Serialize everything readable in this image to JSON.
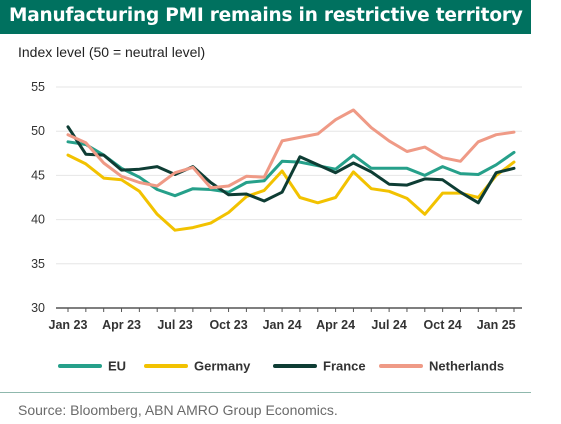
{
  "title": "Manufacturing PMI remains in restrictive territory",
  "subtitle": "Index level (50 = neutral level)",
  "source": "Source: Bloomberg, ABN AMRO Group Economics.",
  "chart_data": {
    "type": "line",
    "title": "Manufacturing PMI remains in restrictive territory",
    "ylabel": "Index level (50 = neutral level)",
    "ylim": [
      30,
      55
    ],
    "yticks": [
      30,
      35,
      40,
      45,
      50,
      55
    ],
    "x": [
      "Jan 23",
      "Feb 23",
      "Mar 23",
      "Apr 23",
      "May 23",
      "Jun 23",
      "Jul 23",
      "Aug 23",
      "Sep 23",
      "Oct 23",
      "Nov 23",
      "Dec 23",
      "Jan 24",
      "Feb 24",
      "Mar 24",
      "Apr 24",
      "May 24",
      "Jun 24",
      "Jul 24",
      "Aug 24",
      "Sep 24",
      "Oct 24",
      "Nov 24",
      "Dec 24",
      "Jan 25",
      "Feb 25"
    ],
    "xtick_labels": [
      "Jan 23",
      "Apr 23",
      "Jul 23",
      "Oct 23",
      "Jan 24",
      "Apr 24",
      "Jul 24",
      "Oct 24",
      "Jan 25"
    ],
    "grid": "horizontal",
    "legend_position": "bottom",
    "series": [
      {
        "name": "EU",
        "color": "#26a08a",
        "values": [
          48.8,
          48.5,
          47.3,
          45.8,
          44.8,
          43.4,
          42.7,
          43.5,
          43.4,
          43.1,
          44.2,
          44.4,
          46.6,
          46.5,
          46.1,
          45.7,
          47.3,
          45.8,
          45.8,
          45.8,
          45.0,
          46.0,
          45.2,
          45.1,
          46.2,
          47.6
        ]
      },
      {
        "name": "Germany",
        "color": "#f2c200",
        "values": [
          47.3,
          46.3,
          44.7,
          44.5,
          43.2,
          40.6,
          38.8,
          39.1,
          39.6,
          40.8,
          42.6,
          43.3,
          45.5,
          42.5,
          41.9,
          42.5,
          45.4,
          43.5,
          43.2,
          42.4,
          40.6,
          43.0,
          43.0,
          42.5,
          45.0,
          46.5
        ]
      },
      {
        "name": "France",
        "color": "#0e3d34",
        "values": [
          50.5,
          47.4,
          47.3,
          45.6,
          45.7,
          46.0,
          45.1,
          46.0,
          44.2,
          42.8,
          42.9,
          42.1,
          43.1,
          47.1,
          46.2,
          45.3,
          46.4,
          45.4,
          44.0,
          43.9,
          44.6,
          44.5,
          43.1,
          41.9,
          45.3,
          45.8
        ]
      },
      {
        "name": "Netherlands",
        "color": "#ef9a86",
        "values": [
          49.6,
          48.7,
          46.4,
          44.9,
          44.2,
          43.8,
          45.3,
          45.9,
          43.6,
          43.8,
          44.9,
          44.8,
          48.9,
          49.3,
          49.7,
          51.3,
          52.4,
          50.4,
          48.9,
          47.7,
          48.2,
          47.0,
          46.6,
          48.8,
          49.6,
          49.9
        ]
      }
    ]
  }
}
